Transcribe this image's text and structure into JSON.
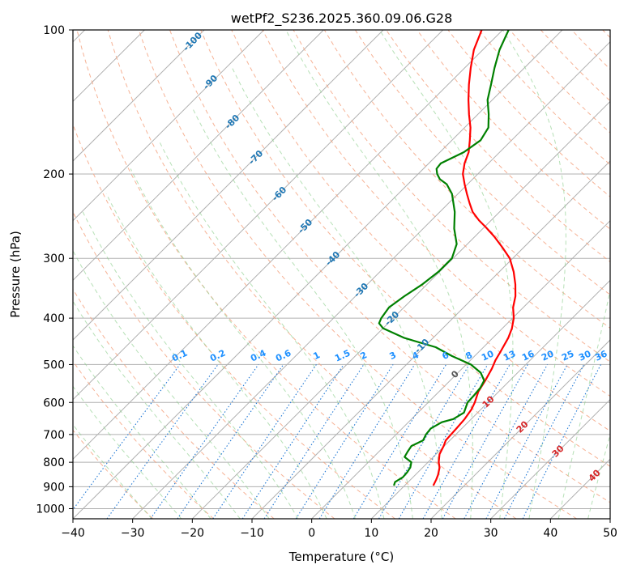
{
  "chart_data": {
    "type": "line",
    "title": "wetPf2_S236.2025.360.09.06.G28",
    "xlabel": "Temperature (°C)",
    "ylabel": "Pressure (hPa)",
    "xlim": [
      -40,
      50
    ],
    "ylim": [
      1050,
      100
    ],
    "x_ticks": [
      -40,
      -30,
      -20,
      -10,
      0,
      10,
      20,
      30,
      40,
      50
    ],
    "y_ticks": [
      100,
      200,
      300,
      400,
      500,
      600,
      700,
      800,
      900,
      1000
    ],
    "y_scale": "log",
    "grid": true,
    "series": [
      {
        "name": "temperature",
        "color": "#ff0000",
        "points": [
          [
            895,
            14.8
          ],
          [
            870,
            14.3
          ],
          [
            850,
            13.8
          ],
          [
            820,
            12.8
          ],
          [
            800,
            11.8
          ],
          [
            770,
            10.6
          ],
          [
            740,
            9.9
          ],
          [
            720,
            9.3
          ],
          [
            700,
            9.2
          ],
          [
            680,
            9.1
          ],
          [
            650,
            8.9
          ],
          [
            620,
            8.4
          ],
          [
            600,
            7.8
          ],
          [
            570,
            6.6
          ],
          [
            540,
            5.9
          ],
          [
            510,
            5.0
          ],
          [
            490,
            4.2
          ],
          [
            470,
            3.6
          ],
          [
            440,
            2.6
          ],
          [
            420,
            1.6
          ],
          [
            400,
            0.2
          ],
          [
            380,
            -1.7
          ],
          [
            360,
            -3.2
          ],
          [
            340,
            -5.2
          ],
          [
            320,
            -7.6
          ],
          [
            300,
            -10.5
          ],
          [
            285,
            -13.5
          ],
          [
            270,
            -16.8
          ],
          [
            258,
            -19.8
          ],
          [
            250,
            -22.0
          ],
          [
            240,
            -24.5
          ],
          [
            230,
            -26.5
          ],
          [
            220,
            -28.5
          ],
          [
            210,
            -30.5
          ],
          [
            200,
            -32.5
          ],
          [
            190,
            -34.0
          ],
          [
            180,
            -35.2
          ],
          [
            170,
            -37.0
          ],
          [
            160,
            -39.0
          ],
          [
            150,
            -41.5
          ],
          [
            140,
            -44.0
          ],
          [
            130,
            -46.5
          ],
          [
            120,
            -49.0
          ],
          [
            110,
            -51.5
          ],
          [
            100,
            -53.5
          ]
        ]
      },
      {
        "name": "dewpoint",
        "color": "#008000",
        "points": [
          [
            895,
            8.2
          ],
          [
            880,
            7.8
          ],
          [
            860,
            8.3
          ],
          [
            840,
            8.2
          ],
          [
            820,
            7.9
          ],
          [
            800,
            7.2
          ],
          [
            780,
            5.2
          ],
          [
            760,
            4.8
          ],
          [
            740,
            4.5
          ],
          [
            720,
            5.5
          ],
          [
            700,
            5.0
          ],
          [
            680,
            4.8
          ],
          [
            660,
            5.6
          ],
          [
            650,
            7.0
          ],
          [
            630,
            7.7
          ],
          [
            600,
            6.6
          ],
          [
            580,
            6.5
          ],
          [
            560,
            6.3
          ],
          [
            540,
            5.7
          ],
          [
            520,
            3.8
          ],
          [
            500,
            0.8
          ],
          [
            480,
            -3.8
          ],
          [
            460,
            -8.0
          ],
          [
            440,
            -14.8
          ],
          [
            420,
            -20.0
          ],
          [
            410,
            -21.5
          ],
          [
            400,
            -22.0
          ],
          [
            380,
            -22.5
          ],
          [
            360,
            -21.8
          ],
          [
            340,
            -20.8
          ],
          [
            320,
            -20.2
          ],
          [
            300,
            -20.2
          ],
          [
            280,
            -21.8
          ],
          [
            260,
            -24.8
          ],
          [
            240,
            -27.5
          ],
          [
            220,
            -31.0
          ],
          [
            210,
            -33.5
          ],
          [
            205,
            -35.5
          ],
          [
            200,
            -36.8
          ],
          [
            195,
            -37.8
          ],
          [
            190,
            -38.0
          ],
          [
            180,
            -36.0
          ],
          [
            170,
            -35.2
          ],
          [
            160,
            -36.0
          ],
          [
            150,
            -38.2
          ],
          [
            140,
            -40.8
          ],
          [
            130,
            -42.8
          ],
          [
            120,
            -45.0
          ],
          [
            110,
            -47.2
          ],
          [
            100,
            -49.0
          ]
        ]
      }
    ],
    "dry_adiabat_labels": [
      "-100",
      "-90",
      "-80",
      "-70",
      "-60",
      "-50",
      "-40",
      "-30",
      "-20",
      "-10",
      "0",
      "10",
      "20",
      "30",
      "40"
    ],
    "mixing_ratio_labels": [
      "0.1",
      "0.2",
      "0.4",
      "0.6",
      "1",
      "1.5",
      "2",
      "3",
      "4",
      "6",
      "8",
      "10",
      "13",
      "16",
      "20",
      "25",
      "30",
      "36"
    ]
  }
}
